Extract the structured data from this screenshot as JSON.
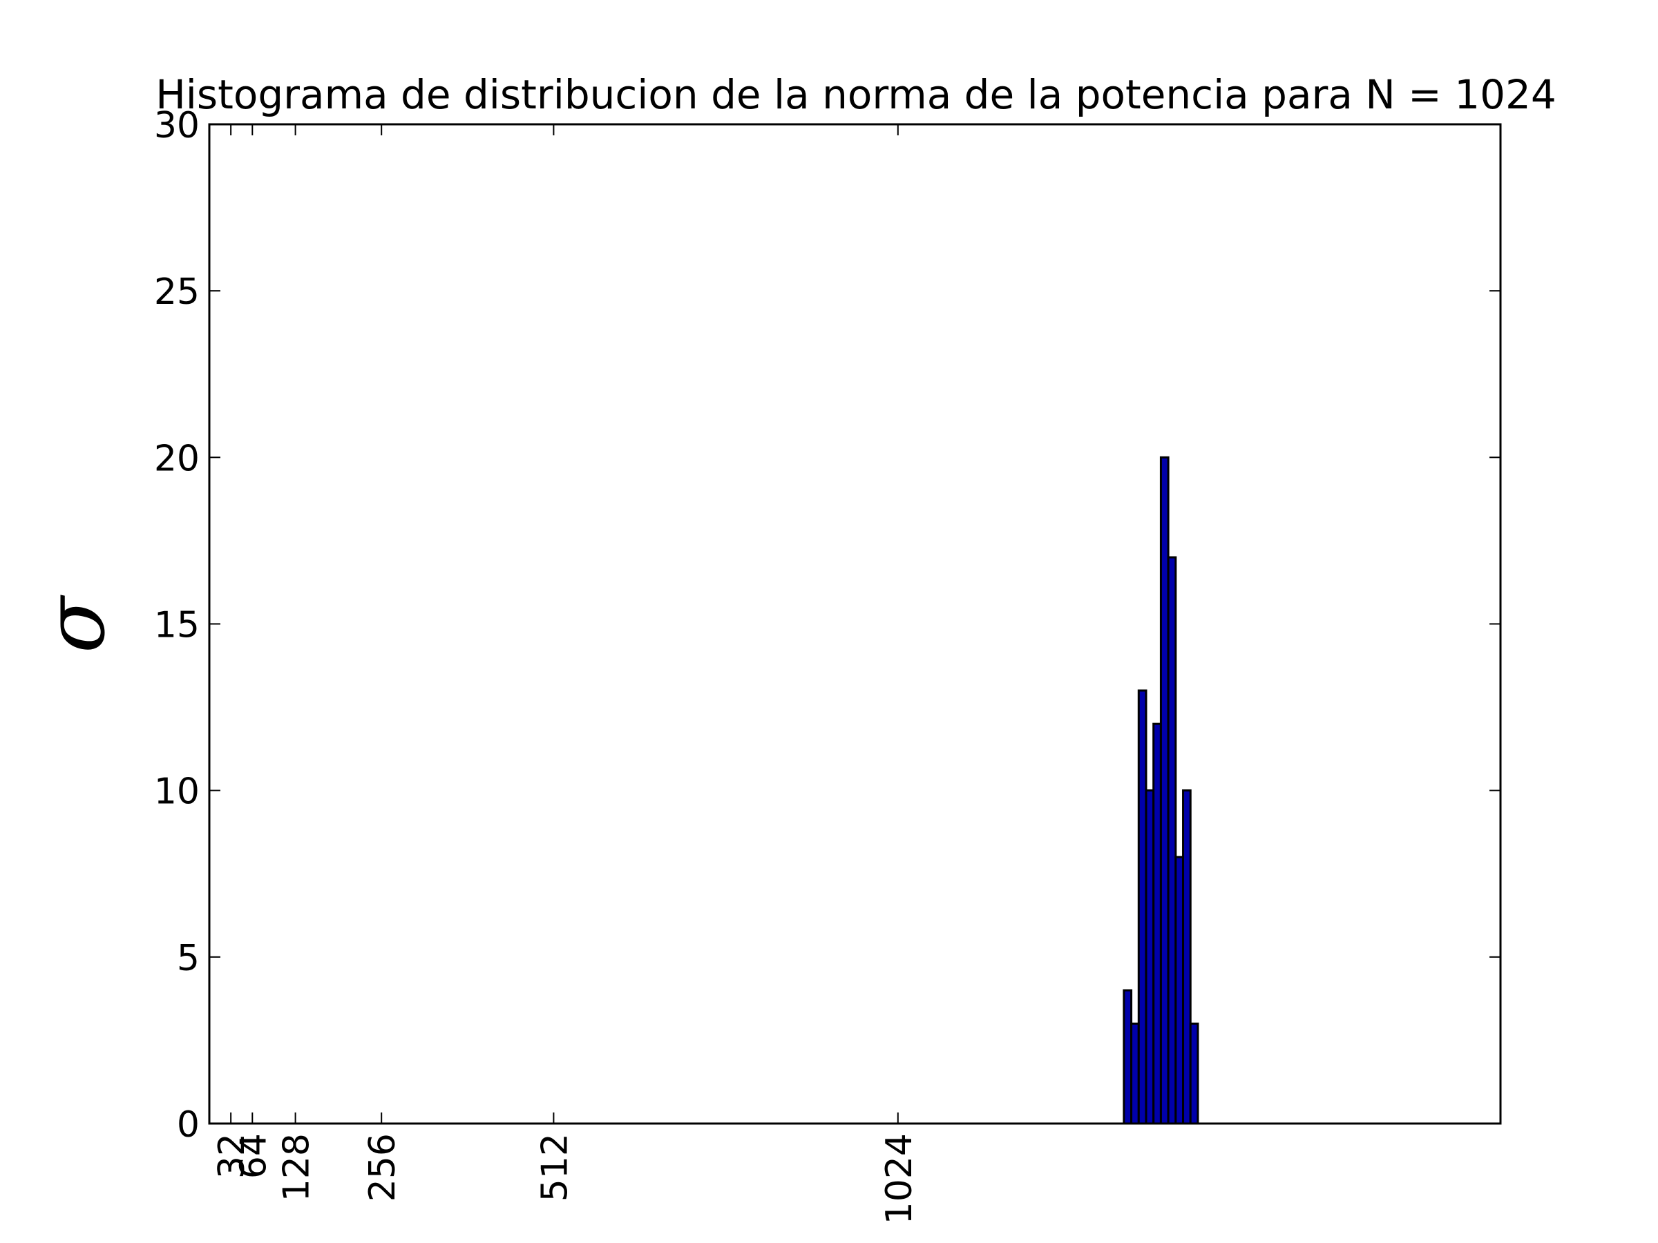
{
  "chart_data": {
    "type": "bar",
    "title": "Histograma de distribucion de la norma de la potencia para N = 1024",
    "xlabel": "",
    "ylabel": "σ",
    "xlim": [
      0,
      1920
    ],
    "ylim": [
      0,
      30
    ],
    "yticks": [
      0,
      5,
      10,
      15,
      20,
      25,
      30
    ],
    "xticks": [
      32,
      64,
      128,
      256,
      512,
      1024
    ],
    "grid": false,
    "bar_color": "#0000aa",
    "bins": [
      {
        "x0": 1360,
        "x1": 1371,
        "value": 4
      },
      {
        "x0": 1371,
        "x1": 1382,
        "value": 3
      },
      {
        "x0": 1382,
        "x1": 1393,
        "value": 13
      },
      {
        "x0": 1393,
        "x1": 1404,
        "value": 10
      },
      {
        "x0": 1404,
        "x1": 1415,
        "value": 12
      },
      {
        "x0": 1415,
        "x1": 1426,
        "value": 20
      },
      {
        "x0": 1426,
        "x1": 1437,
        "value": 17
      },
      {
        "x0": 1437,
        "x1": 1448,
        "value": 8
      },
      {
        "x0": 1448,
        "x1": 1459,
        "value": 10
      },
      {
        "x0": 1459,
        "x1": 1470,
        "value": 3
      }
    ]
  }
}
